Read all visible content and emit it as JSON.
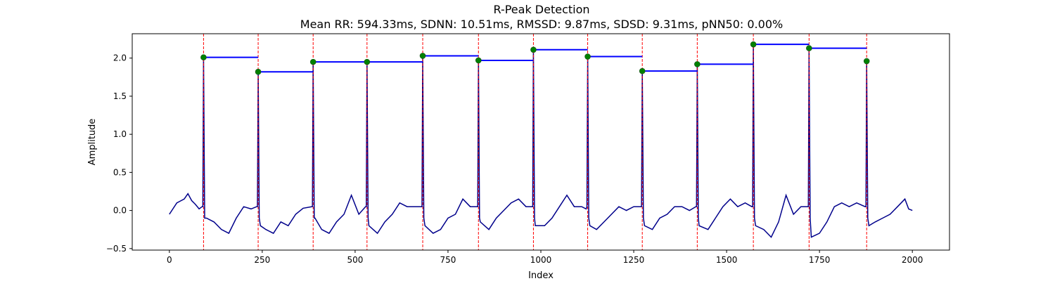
{
  "chart_data": {
    "type": "line",
    "title": "R-Peak Detection",
    "subtitle": "Mean RR: 594.33ms, SDNN: 10.51ms, RMSSD: 9.87ms, SDSD: 9.31ms, pNN50: 0.00%",
    "xlabel": "Index",
    "ylabel": "Amplitude",
    "xlim": [
      -100,
      2100
    ],
    "ylim": [
      -0.52,
      2.32
    ],
    "xticks": [
      0,
      250,
      500,
      750,
      1000,
      1250,
      1500,
      1750,
      2000
    ],
    "yticks": [
      -0.5,
      0.0,
      0.5,
      1.0,
      1.5,
      2.0
    ],
    "grid": false,
    "colors": {
      "signal": "#00008b",
      "peak_marker": "#008000",
      "peak_line": "#ff0000",
      "rr_interval": "#0000ff"
    },
    "r_peaks": [
      {
        "x": 92,
        "y": 2.01
      },
      {
        "x": 239,
        "y": 1.82
      },
      {
        "x": 387,
        "y": 1.95
      },
      {
        "x": 532,
        "y": 1.95
      },
      {
        "x": 682,
        "y": 2.03
      },
      {
        "x": 832,
        "y": 1.97
      },
      {
        "x": 980,
        "y": 2.11
      },
      {
        "x": 1126,
        "y": 2.02
      },
      {
        "x": 1273,
        "y": 1.83
      },
      {
        "x": 1421,
        "y": 1.92
      },
      {
        "x": 1572,
        "y": 2.18
      },
      {
        "x": 1722,
        "y": 2.13
      },
      {
        "x": 1877,
        "y": 1.96
      }
    ],
    "baseline_signal": [
      [
        0,
        -0.05
      ],
      [
        20,
        0.1
      ],
      [
        40,
        0.15
      ],
      [
        50,
        0.22
      ],
      [
        60,
        0.13
      ],
      [
        70,
        0.08
      ],
      [
        80,
        0.02
      ],
      [
        88,
        0.05
      ],
      [
        100,
        -0.1
      ],
      [
        120,
        -0.15
      ],
      [
        140,
        -0.25
      ],
      [
        160,
        -0.3
      ],
      [
        180,
        -0.1
      ],
      [
        200,
        0.05
      ],
      [
        220,
        0.02
      ],
      [
        235,
        0.05
      ],
      [
        245,
        -0.2
      ],
      [
        260,
        -0.25
      ],
      [
        280,
        -0.3
      ],
      [
        300,
        -0.15
      ],
      [
        320,
        -0.2
      ],
      [
        340,
        -0.05
      ],
      [
        360,
        0.03
      ],
      [
        383,
        0.05
      ],
      [
        392,
        -0.1
      ],
      [
        410,
        -0.25
      ],
      [
        430,
        -0.3
      ],
      [
        450,
        -0.15
      ],
      [
        470,
        -0.05
      ],
      [
        490,
        0.2
      ],
      [
        510,
        -0.05
      ],
      [
        528,
        0.05
      ],
      [
        537,
        -0.2
      ],
      [
        560,
        -0.3
      ],
      [
        580,
        -0.15
      ],
      [
        600,
        -0.05
      ],
      [
        620,
        0.1
      ],
      [
        640,
        0.05
      ],
      [
        660,
        0.05
      ],
      [
        678,
        0.05
      ],
      [
        688,
        -0.2
      ],
      [
        710,
        -0.3
      ],
      [
        730,
        -0.25
      ],
      [
        750,
        -0.1
      ],
      [
        770,
        -0.05
      ],
      [
        790,
        0.15
      ],
      [
        810,
        0.05
      ],
      [
        828,
        0.05
      ],
      [
        837,
        -0.15
      ],
      [
        860,
        -0.25
      ],
      [
        880,
        -0.1
      ],
      [
        900,
        0.0
      ],
      [
        920,
        0.1
      ],
      [
        940,
        0.15
      ],
      [
        960,
        0.05
      ],
      [
        976,
        0.05
      ],
      [
        985,
        -0.2
      ],
      [
        1010,
        -0.2
      ],
      [
        1030,
        -0.1
      ],
      [
        1050,
        0.05
      ],
      [
        1070,
        0.2
      ],
      [
        1090,
        0.05
      ],
      [
        1110,
        0.05
      ],
      [
        1122,
        0.02
      ],
      [
        1132,
        -0.2
      ],
      [
        1150,
        -0.25
      ],
      [
        1170,
        -0.15
      ],
      [
        1190,
        -0.05
      ],
      [
        1210,
        0.05
      ],
      [
        1230,
        0.0
      ],
      [
        1250,
        0.05
      ],
      [
        1269,
        0.05
      ],
      [
        1279,
        -0.2
      ],
      [
        1300,
        -0.25
      ],
      [
        1320,
        -0.1
      ],
      [
        1340,
        -0.05
      ],
      [
        1360,
        0.05
      ],
      [
        1380,
        0.05
      ],
      [
        1400,
        0.0
      ],
      [
        1417,
        0.05
      ],
      [
        1426,
        -0.2
      ],
      [
        1450,
        -0.25
      ],
      [
        1470,
        -0.1
      ],
      [
        1490,
        0.05
      ],
      [
        1510,
        0.15
      ],
      [
        1530,
        0.05
      ],
      [
        1550,
        0.1
      ],
      [
        1568,
        0.05
      ],
      [
        1578,
        -0.2
      ],
      [
        1600,
        -0.25
      ],
      [
        1620,
        -0.35
      ],
      [
        1640,
        -0.15
      ],
      [
        1660,
        0.2
      ],
      [
        1680,
        -0.05
      ],
      [
        1700,
        0.05
      ],
      [
        1718,
        0.05
      ],
      [
        1728,
        -0.35
      ],
      [
        1750,
        -0.3
      ],
      [
        1770,
        -0.15
      ],
      [
        1790,
        0.05
      ],
      [
        1810,
        0.1
      ],
      [
        1830,
        0.05
      ],
      [
        1850,
        0.1
      ],
      [
        1873,
        0.05
      ],
      [
        1883,
        -0.2
      ],
      [
        1900,
        -0.15
      ],
      [
        1920,
        -0.1
      ],
      [
        1940,
        -0.05
      ],
      [
        1960,
        0.05
      ],
      [
        1980,
        0.15
      ],
      [
        1990,
        0.02
      ],
      [
        2000,
        0.0
      ]
    ]
  }
}
